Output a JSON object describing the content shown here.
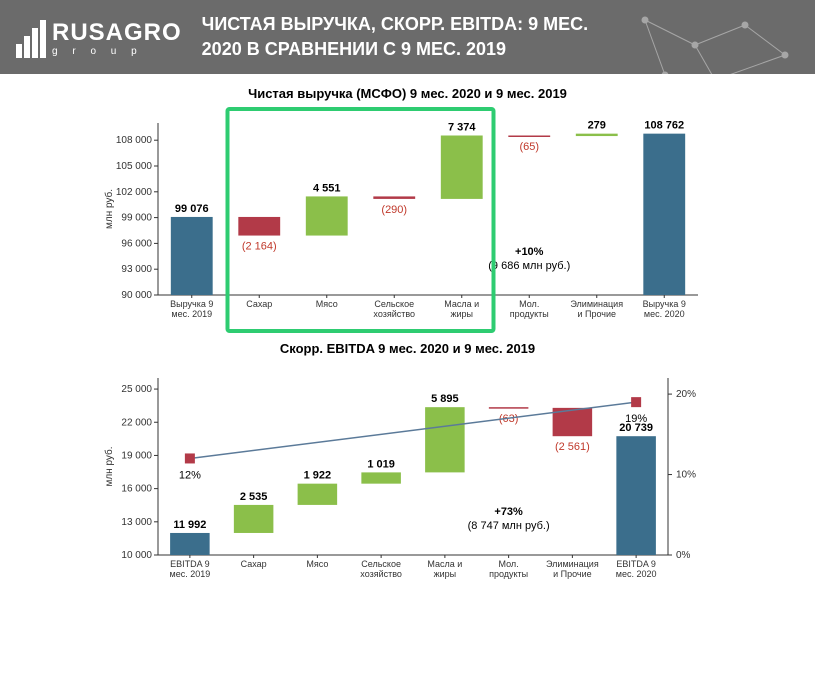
{
  "header": {
    "logo_main": "RUSAGRO",
    "logo_sub": "g r o u p",
    "title": "ЧИСТАЯ ВЫРУЧКА, СКОРР. EBITDA: 9 МЕС. 2020 В СРАВНЕНИИ С 9 МЕС. 2019"
  },
  "colors": {
    "header_bg": "#6b6b6b",
    "bar_blue": "#3b6e8c",
    "bar_green": "#8bbf4a",
    "bar_red": "#b23a48",
    "axis": "#333333",
    "neg_text": "#c0392b",
    "highlight": "#2ecc71",
    "line": "#5b7a99"
  },
  "chart1": {
    "title": "Чистая выручка (МСФО) 9 мес. 2020 и 9 мес. 2019",
    "ylabel": "млн руб.",
    "ylim": [
      90000,
      110000
    ],
    "ytick_step": 3000,
    "yticks": [
      90000,
      93000,
      96000,
      99000,
      102000,
      105000,
      108000
    ],
    "ytick_labels": [
      "90 000",
      "93 000",
      "96 000",
      "99 000",
      "102 000",
      "105 000",
      "108 000"
    ],
    "categories": [
      "Выручка 9 мес. 2019",
      "Сахар",
      "Мясо",
      "Сельское хозяйство",
      "Масла и жиры",
      "Мол. продукты",
      "Элиминация и Прочие",
      "Выручка 9 мес. 2020"
    ],
    "bars": [
      {
        "label": "99 076",
        "start": 90000,
        "end": 99076,
        "color": "#3b6e8c",
        "neg": false
      },
      {
        "label": "(2 164)",
        "start": 96912,
        "end": 99076,
        "color": "#b23a48",
        "neg": true
      },
      {
        "label": "4 551",
        "start": 96912,
        "end": 101463,
        "color": "#8bbf4a",
        "neg": false
      },
      {
        "label": "(290)",
        "start": 101173,
        "end": 101463,
        "color": "#b23a48",
        "neg": true
      },
      {
        "label": "7 374",
        "start": 101173,
        "end": 108547,
        "color": "#8bbf4a",
        "neg": false
      },
      {
        "label": "(65)",
        "start": 108482,
        "end": 108547,
        "color": "#b23a48",
        "neg": true
      },
      {
        "label": "279",
        "start": 108482,
        "end": 108761,
        "color": "#8bbf4a",
        "neg": false
      },
      {
        "label": "108 762",
        "start": 90000,
        "end": 108762,
        "color": "#3b6e8c",
        "neg": false
      }
    ],
    "summary": {
      "line1": "+10%",
      "line2": "(9 686 млн руб.)"
    },
    "highlight_cols": [
      1,
      4
    ]
  },
  "chart2": {
    "title": "Скорр. EBITDA 9 мес. 2020 и 9 мес. 2019",
    "ylabel": "млн руб.",
    "ylim": [
      10000,
      26000
    ],
    "ytick_step": 3000,
    "yticks": [
      10000,
      13000,
      16000,
      19000,
      22000,
      25000
    ],
    "ytick_labels": [
      "10 000",
      "13 000",
      "16 000",
      "19 000",
      "22 000",
      "25 000"
    ],
    "y2label": "",
    "y2lim": [
      0,
      22
    ],
    "y2ticks": [
      0,
      10,
      20
    ],
    "y2tick_labels": [
      "0%",
      "10%",
      "20%"
    ],
    "categories": [
      "EBITDA 9 мес. 2019",
      "Сахар",
      "Мясо",
      "Сельское хозяйство",
      "Масла и жиры",
      "Мол. продукты",
      "Элиминация и Прочие",
      "EBITDA 9 мес. 2020"
    ],
    "bars": [
      {
        "label": "11 992",
        "start": 10000,
        "end": 11992,
        "color": "#3b6e8c",
        "neg": false
      },
      {
        "label": "2 535",
        "start": 11992,
        "end": 14527,
        "color": "#8bbf4a",
        "neg": false
      },
      {
        "label": "1 922",
        "start": 14527,
        "end": 16449,
        "color": "#8bbf4a",
        "neg": false
      },
      {
        "label": "1 019",
        "start": 16449,
        "end": 17468,
        "color": "#8bbf4a",
        "neg": false
      },
      {
        "label": "5 895",
        "start": 17468,
        "end": 23363,
        "color": "#8bbf4a",
        "neg": false
      },
      {
        "label": "(63)",
        "start": 23300,
        "end": 23363,
        "color": "#b23a48",
        "neg": true
      },
      {
        "label": "(2 561)",
        "start": 20739,
        "end": 23300,
        "color": "#b23a48",
        "neg": true
      },
      {
        "label": "20 739",
        "start": 10000,
        "end": 20739,
        "color": "#3b6e8c",
        "neg": false
      }
    ],
    "line_pts": [
      {
        "x": 0,
        "pct": 12,
        "label": "12%"
      },
      {
        "x": 7,
        "pct": 19,
        "label": "19%"
      }
    ],
    "summary": {
      "line1": "+73%",
      "line2": "(8 747 млн руб.)"
    }
  }
}
